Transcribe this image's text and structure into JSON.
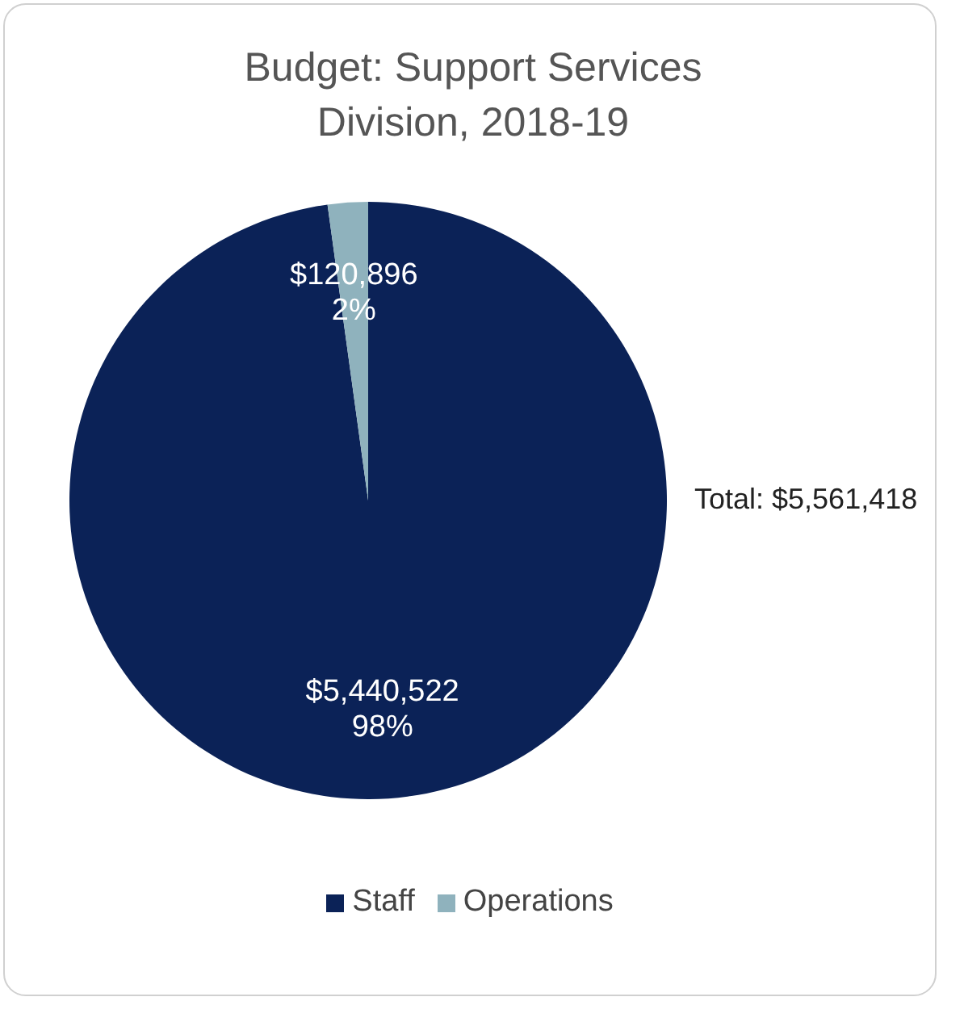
{
  "chart_data": {
    "type": "pie",
    "title": "Budget: Support Services Division, 2018-19",
    "categories": [
      "Staff",
      "Operations"
    ],
    "values": [
      5440522,
      120896
    ],
    "colors": [
      "#0b2257",
      "#8fb2bd"
    ],
    "value_labels": [
      "$5,440,522\n98%",
      "$120,896\n2%"
    ],
    "annotations": [
      "Total: $5,561,418"
    ],
    "legend": "bottom"
  }
}
